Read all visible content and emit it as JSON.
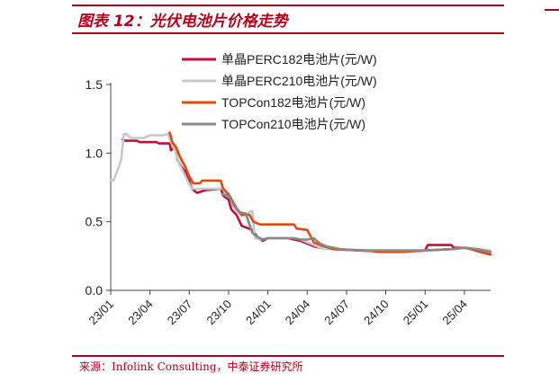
{
  "figure": {
    "title": "图表 12：光伏电池片价格走势",
    "source": "来源：Infolink Consulting，中泰证券研究所"
  },
  "colors": {
    "accent": "#b3001b"
  },
  "chart_data": {
    "type": "line",
    "title": "",
    "xlabel": "",
    "ylabel": "",
    "ylim": [
      0,
      1.5
    ],
    "yticks": [
      0.0,
      0.5,
      1.0,
      1.5
    ],
    "ytick_labels": [
      "0.0",
      "0.5",
      "1.0",
      "1.5"
    ],
    "xlim": [
      0,
      29
    ],
    "xticks": [
      0,
      3,
      6,
      9,
      12,
      15,
      18,
      21,
      24,
      27
    ],
    "xtick_labels": [
      "23/01",
      "23/04",
      "23/07",
      "23/10",
      "24/01",
      "24/04",
      "24/07",
      "24/10",
      "25/01",
      "25/04"
    ],
    "x_unit": "months since 23/01",
    "legend_position": "top",
    "series": [
      {
        "name": "单晶PERC182电池片(元/W)",
        "color": "#c0103a",
        "points": [
          [
            0.9,
            1.1
          ],
          [
            1.1,
            1.09
          ],
          [
            2.0,
            1.09
          ],
          [
            2.2,
            1.08
          ],
          [
            3.5,
            1.08
          ],
          [
            3.7,
            1.07
          ],
          [
            4.5,
            1.07
          ],
          [
            4.6,
            1.02
          ],
          [
            4.9,
            1.05
          ],
          [
            5.1,
            0.95
          ],
          [
            5.4,
            0.9
          ],
          [
            5.8,
            0.85
          ],
          [
            6.2,
            0.74
          ],
          [
            6.6,
            0.71
          ],
          [
            7.2,
            0.73
          ],
          [
            8.4,
            0.74
          ],
          [
            8.6,
            0.69
          ],
          [
            9.0,
            0.66
          ],
          [
            9.2,
            0.59
          ],
          [
            9.6,
            0.55
          ],
          [
            10.0,
            0.47
          ],
          [
            10.8,
            0.44
          ],
          [
            11.2,
            0.39
          ],
          [
            11.6,
            0.36
          ],
          [
            12.0,
            0.38
          ],
          [
            13.5,
            0.38
          ],
          [
            14.0,
            0.37
          ],
          [
            14.5,
            0.36
          ],
          [
            15.0,
            0.34
          ],
          [
            15.5,
            0.32
          ],
          [
            16.0,
            0.31
          ],
          [
            17.0,
            0.3
          ],
          [
            19.0,
            0.29
          ],
          [
            22.0,
            0.28
          ],
          [
            24.0,
            0.29
          ],
          [
            24.2,
            0.33
          ],
          [
            26.0,
            0.33
          ],
          [
            26.2,
            0.31
          ],
          [
            27.2,
            0.31
          ],
          [
            28.2,
            0.28
          ],
          [
            29.0,
            0.26
          ]
        ]
      },
      {
        "name": "单晶PERC210电池片(元/W)",
        "color": "#c8c8c8",
        "points": [
          [
            0.0,
            0.8
          ],
          [
            0.2,
            0.8
          ],
          [
            0.5,
            0.87
          ],
          [
            0.8,
            0.95
          ],
          [
            1.0,
            1.14
          ],
          [
            1.2,
            1.14
          ],
          [
            1.5,
            1.11
          ],
          [
            2.5,
            1.11
          ],
          [
            3.0,
            1.13
          ],
          [
            4.0,
            1.13
          ],
          [
            4.4,
            1.14
          ],
          [
            4.6,
            1.08
          ],
          [
            4.9,
            1.02
          ],
          [
            5.2,
            0.93
          ],
          [
            5.6,
            0.85
          ],
          [
            5.9,
            0.79
          ],
          [
            6.2,
            0.74
          ],
          [
            7.0,
            0.74
          ],
          [
            8.6,
            0.74
          ],
          [
            8.8,
            0.69
          ],
          [
            9.1,
            0.68
          ],
          [
            9.3,
            0.62
          ],
          [
            9.7,
            0.57
          ],
          [
            10.0,
            0.54
          ],
          [
            10.4,
            0.56
          ],
          [
            10.8,
            0.58
          ],
          [
            11.0,
            0.38
          ],
          [
            11.4,
            0.37
          ],
          [
            12.0,
            0.38
          ],
          [
            14.0,
            0.38
          ],
          [
            14.5,
            0.37
          ],
          [
            15.0,
            0.35
          ],
          [
            15.5,
            0.33
          ],
          [
            16.0,
            0.31
          ],
          [
            17.0,
            0.3
          ],
          [
            20.0,
            0.29
          ],
          [
            24.0,
            0.29
          ],
          [
            26.0,
            0.3
          ],
          [
            27.0,
            0.31
          ],
          [
            28.0,
            0.3
          ],
          [
            29.0,
            0.29
          ]
        ]
      },
      {
        "name": "TOPCon182电池片(元/W)",
        "color": "#e04a10",
        "points": [
          [
            4.5,
            1.15
          ],
          [
            4.7,
            1.08
          ],
          [
            5.0,
            1.04
          ],
          [
            5.3,
            0.97
          ],
          [
            5.7,
            0.9
          ],
          [
            6.0,
            0.83
          ],
          [
            6.3,
            0.78
          ],
          [
            6.8,
            0.78
          ],
          [
            7.0,
            0.8
          ],
          [
            8.4,
            0.8
          ],
          [
            8.6,
            0.74
          ],
          [
            9.0,
            0.7
          ],
          [
            9.3,
            0.65
          ],
          [
            9.6,
            0.6
          ],
          [
            10.0,
            0.55
          ],
          [
            10.6,
            0.55
          ],
          [
            10.9,
            0.5
          ],
          [
            11.4,
            0.48
          ],
          [
            12.0,
            0.48
          ],
          [
            14.0,
            0.48
          ],
          [
            14.2,
            0.45
          ],
          [
            15.0,
            0.44
          ],
          [
            15.5,
            0.35
          ],
          [
            16.0,
            0.33
          ],
          [
            17.0,
            0.3
          ],
          [
            19.5,
            0.29
          ],
          [
            20.5,
            0.28
          ],
          [
            22.0,
            0.28
          ],
          [
            24.0,
            0.29
          ],
          [
            26.0,
            0.3
          ],
          [
            27.0,
            0.31
          ],
          [
            28.0,
            0.29
          ],
          [
            29.0,
            0.26
          ]
        ]
      },
      {
        "name": "TOPCon210电池片(元/W)",
        "color": "#888888",
        "points": [
          [
            8.5,
            0.7
          ],
          [
            9.0,
            0.69
          ],
          [
            9.4,
            0.62
          ],
          [
            9.8,
            0.57
          ],
          [
            10.3,
            0.56
          ],
          [
            10.6,
            0.48
          ],
          [
            10.8,
            0.42
          ],
          [
            11.2,
            0.39
          ],
          [
            11.6,
            0.37
          ],
          [
            12.0,
            0.38
          ],
          [
            14.0,
            0.38
          ],
          [
            14.5,
            0.37
          ],
          [
            15.0,
            0.37
          ],
          [
            15.5,
            0.38
          ],
          [
            16.0,
            0.34
          ],
          [
            16.5,
            0.32
          ],
          [
            17.5,
            0.3
          ],
          [
            19.0,
            0.29
          ],
          [
            21.0,
            0.29
          ],
          [
            24.0,
            0.29
          ],
          [
            26.0,
            0.3
          ],
          [
            27.0,
            0.31
          ],
          [
            28.0,
            0.3
          ],
          [
            29.0,
            0.28
          ]
        ]
      }
    ]
  }
}
